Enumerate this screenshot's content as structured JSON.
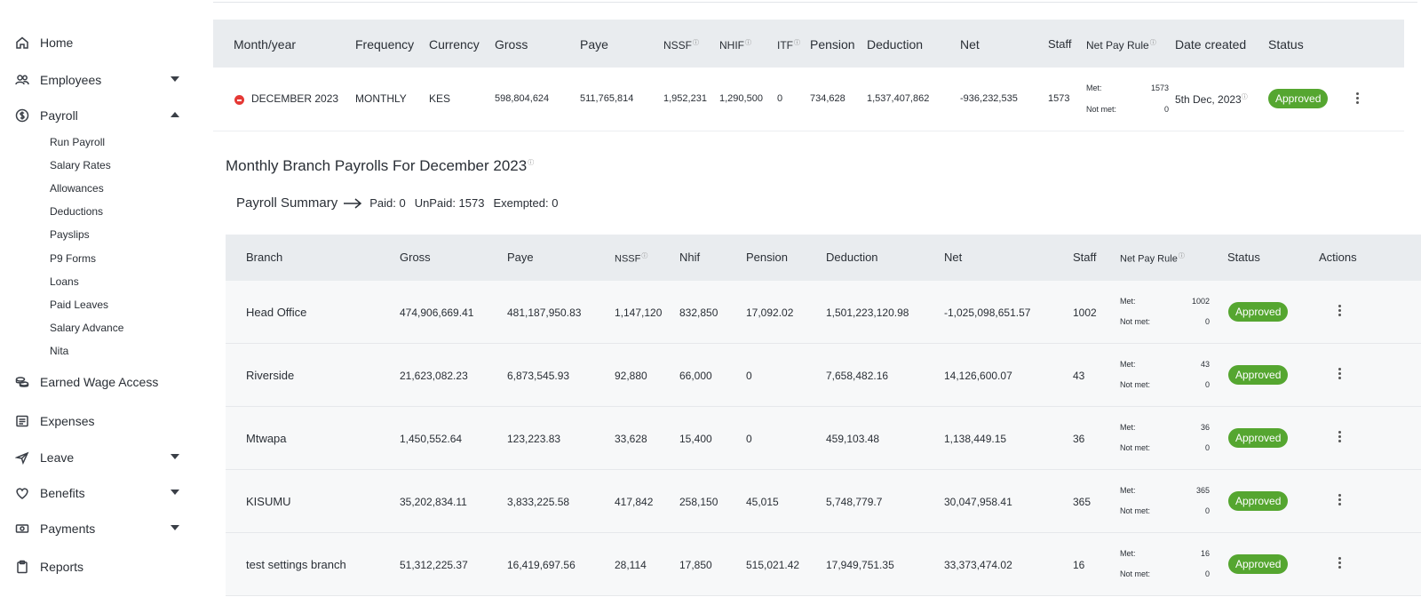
{
  "sidebar": {
    "items": [
      {
        "label": "Home",
        "icon": "home-icon"
      },
      {
        "label": "Employees",
        "icon": "users-icon"
      },
      {
        "label": "Payroll",
        "icon": "dollar-circle-icon"
      },
      {
        "label": "Earned Wage Access",
        "icon": "coins-icon"
      },
      {
        "label": "Expenses",
        "icon": "receipt-icon"
      },
      {
        "label": "Leave",
        "icon": "plane-icon"
      },
      {
        "label": "Benefits",
        "icon": "heart-icon"
      },
      {
        "label": "Payments",
        "icon": "cash-icon"
      },
      {
        "label": "Reports",
        "icon": "clipboard-icon"
      }
    ],
    "payroll_sub": [
      "Run Payroll",
      "Salary Rates",
      "Allowances",
      "Deductions",
      "Payslips",
      "P9 Forms",
      "Loans",
      "Paid Leaves",
      "Salary Advance",
      "Nita"
    ]
  },
  "summary_table": {
    "headers": {
      "month_year": "Month/year",
      "frequency": "Frequency",
      "currency": "Currency",
      "gross": "Gross",
      "paye": "Paye",
      "nssf": "NSSF",
      "nhif": "NHIF",
      "itf": "ITF",
      "pension": "Pension",
      "deduction": "Deduction",
      "net": "Net",
      "staff": "Staff",
      "net_pay_rule": "Net Pay Rule",
      "date_created": "Date created",
      "status": "Status"
    },
    "row": {
      "month_year": "DECEMBER 2023",
      "frequency": "MONTHLY",
      "currency": "KES",
      "gross": "598,804,624",
      "paye": "511,765,814",
      "nssf": "1,952,231",
      "nhif": "1,290,500",
      "itf": "0",
      "pension": "734,628",
      "deduction": "1,537,407,862",
      "net": "-936,232,535",
      "staff": "1573",
      "met_label": "Met:",
      "met": "1573",
      "not_met_label": "Not met:",
      "not_met": "0",
      "date_created": "5th Dec, 2023",
      "status": "Approved"
    }
  },
  "branch_section": {
    "title": "Monthly Branch Payrolls For December 2023",
    "summary_title": "Payroll Summary",
    "paid": "Paid: 0",
    "unpaid": "UnPaid: 1573",
    "exempted": "Exempted: 0",
    "headers": {
      "branch": "Branch",
      "gross": "Gross",
      "paye": "Paye",
      "nssf": "NSSF",
      "nhif": "Nhif",
      "pension": "Pension",
      "deduction": "Deduction",
      "net": "Net",
      "staff": "Staff",
      "net_pay_rule": "Net Pay Rule",
      "status": "Status",
      "actions": "Actions"
    },
    "rows": [
      {
        "branch": "Head Office",
        "gross": "474,906,669.41",
        "paye": "481,187,950.83",
        "nssf": "1,147,120",
        "nhif": "832,850",
        "pension": "17,092.02",
        "deduction": "1,501,223,120.98",
        "net": "-1,025,098,651.57",
        "staff": "1002",
        "met_label": "Met:",
        "met": "1002",
        "not_met_label": "Not met:",
        "not_met": "0",
        "status": "Approved"
      },
      {
        "branch": "Riverside",
        "gross": "21,623,082.23",
        "paye": "6,873,545.93",
        "nssf": "92,880",
        "nhif": "66,000",
        "pension": "0",
        "deduction": "7,658,482.16",
        "net": "14,126,600.07",
        "staff": "43",
        "met_label": "Met:",
        "met": "43",
        "not_met_label": "Not met:",
        "not_met": "0",
        "status": "Approved"
      },
      {
        "branch": "Mtwapa",
        "gross": "1,450,552.64",
        "paye": "123,223.83",
        "nssf": "33,628",
        "nhif": "15,400",
        "pension": "0",
        "deduction": "459,103.48",
        "net": "1,138,449.15",
        "staff": "36",
        "met_label": "Met:",
        "met": "36",
        "not_met_label": "Not met:",
        "not_met": "0",
        "status": "Approved"
      },
      {
        "branch": "KISUMU",
        "gross": "35,202,834.11",
        "paye": "3,833,225.58",
        "nssf": "417,842",
        "nhif": "258,150",
        "pension": "45,015",
        "deduction": "5,748,779.7",
        "net": "30,047,958.41",
        "staff": "365",
        "met_label": "Met:",
        "met": "365",
        "not_met_label": "Not met:",
        "not_met": "0",
        "status": "Approved"
      },
      {
        "branch": "test settings branch",
        "gross": "51,312,225.37",
        "paye": "16,419,697.56",
        "nssf": "28,114",
        "nhif": "17,850",
        "pension": "515,021.42",
        "deduction": "17,949,751.35",
        "net": "33,373,474.02",
        "staff": "16",
        "met_label": "Met:",
        "met": "16",
        "not_met_label": "Not met:",
        "not_met": "0",
        "status": "Approved"
      }
    ]
  },
  "colors": {
    "approved": "#55a630",
    "header_bg": "#e9ecef",
    "error_dot": "#e53935"
  }
}
